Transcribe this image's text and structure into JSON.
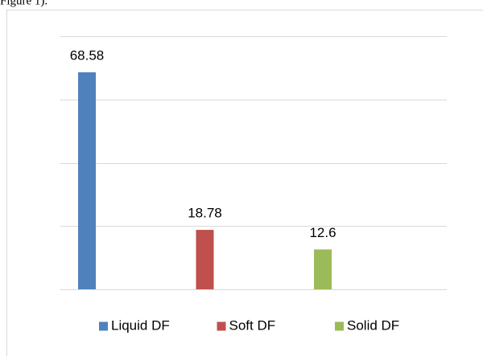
{
  "caption": "Figure 1).",
  "chart_data": {
    "type": "bar",
    "series": [
      {
        "name": "Liquid DF",
        "color": "#4f81bd",
        "values": [
          68.58
        ]
      },
      {
        "name": "Soft DF",
        "color": "#c0504d",
        "values": [
          18.78
        ]
      },
      {
        "name": "Solid DF",
        "color": "#9bbb59",
        "values": [
          12.6
        ]
      }
    ],
    "ylim": [
      0,
      80
    ],
    "yticks": [
      0,
      20,
      40,
      60,
      80
    ],
    "grid": true,
    "legend": "bottom"
  }
}
